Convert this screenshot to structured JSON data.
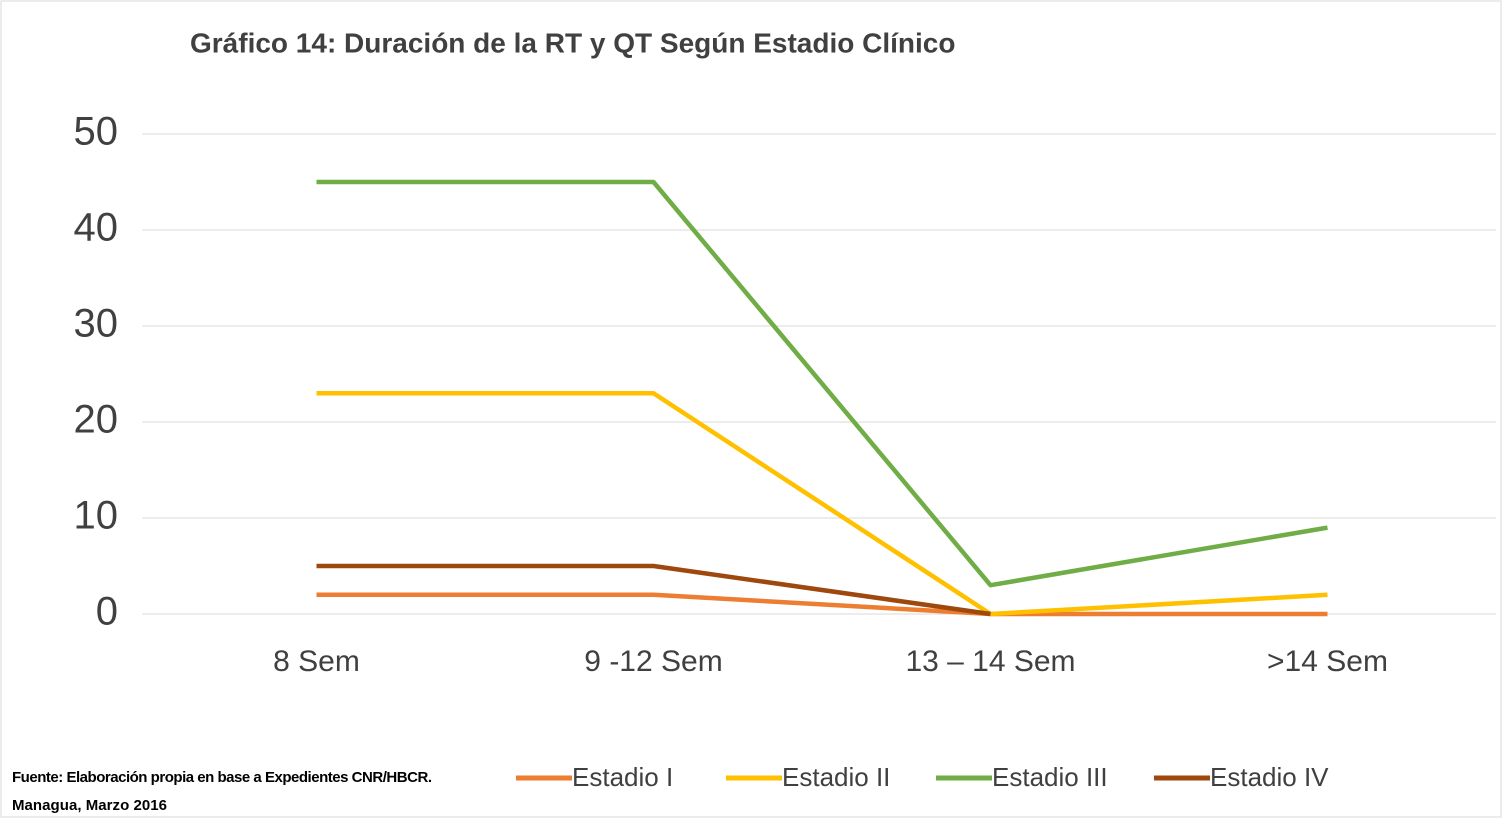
{
  "chart_data": {
    "type": "line",
    "title": "Gráfico 14:  Duración de la RT y QT  Según Estadio Clínico",
    "source": [
      "Fuente: Elaboración propia en base a Expedientes CNR/HBCR.",
      "Managua, Marzo 2016"
    ],
    "categories": [
      "8 Sem",
      "9 -12 Sem",
      "13 – 14 Sem",
      ">14 Sem"
    ],
    "series": [
      {
        "name": "Estadio I",
        "color": "#ed7d31",
        "values": [
          2,
          2,
          0,
          0
        ]
      },
      {
        "name": "Estadio II",
        "color": "#ffc000",
        "values": [
          23,
          23,
          0,
          2
        ]
      },
      {
        "name": "Estadio III",
        "color": "#70ad47",
        "values": [
          45,
          45,
          3,
          9
        ]
      },
      {
        "name": "Estadio IV",
        "color": "#9e480e",
        "values": [
          5,
          5,
          0,
          null
        ]
      }
    ],
    "ylim": [
      0,
      50
    ],
    "yticks": [
      0,
      10,
      20,
      30,
      40,
      50
    ],
    "grid": true,
    "legend": "bottom"
  }
}
